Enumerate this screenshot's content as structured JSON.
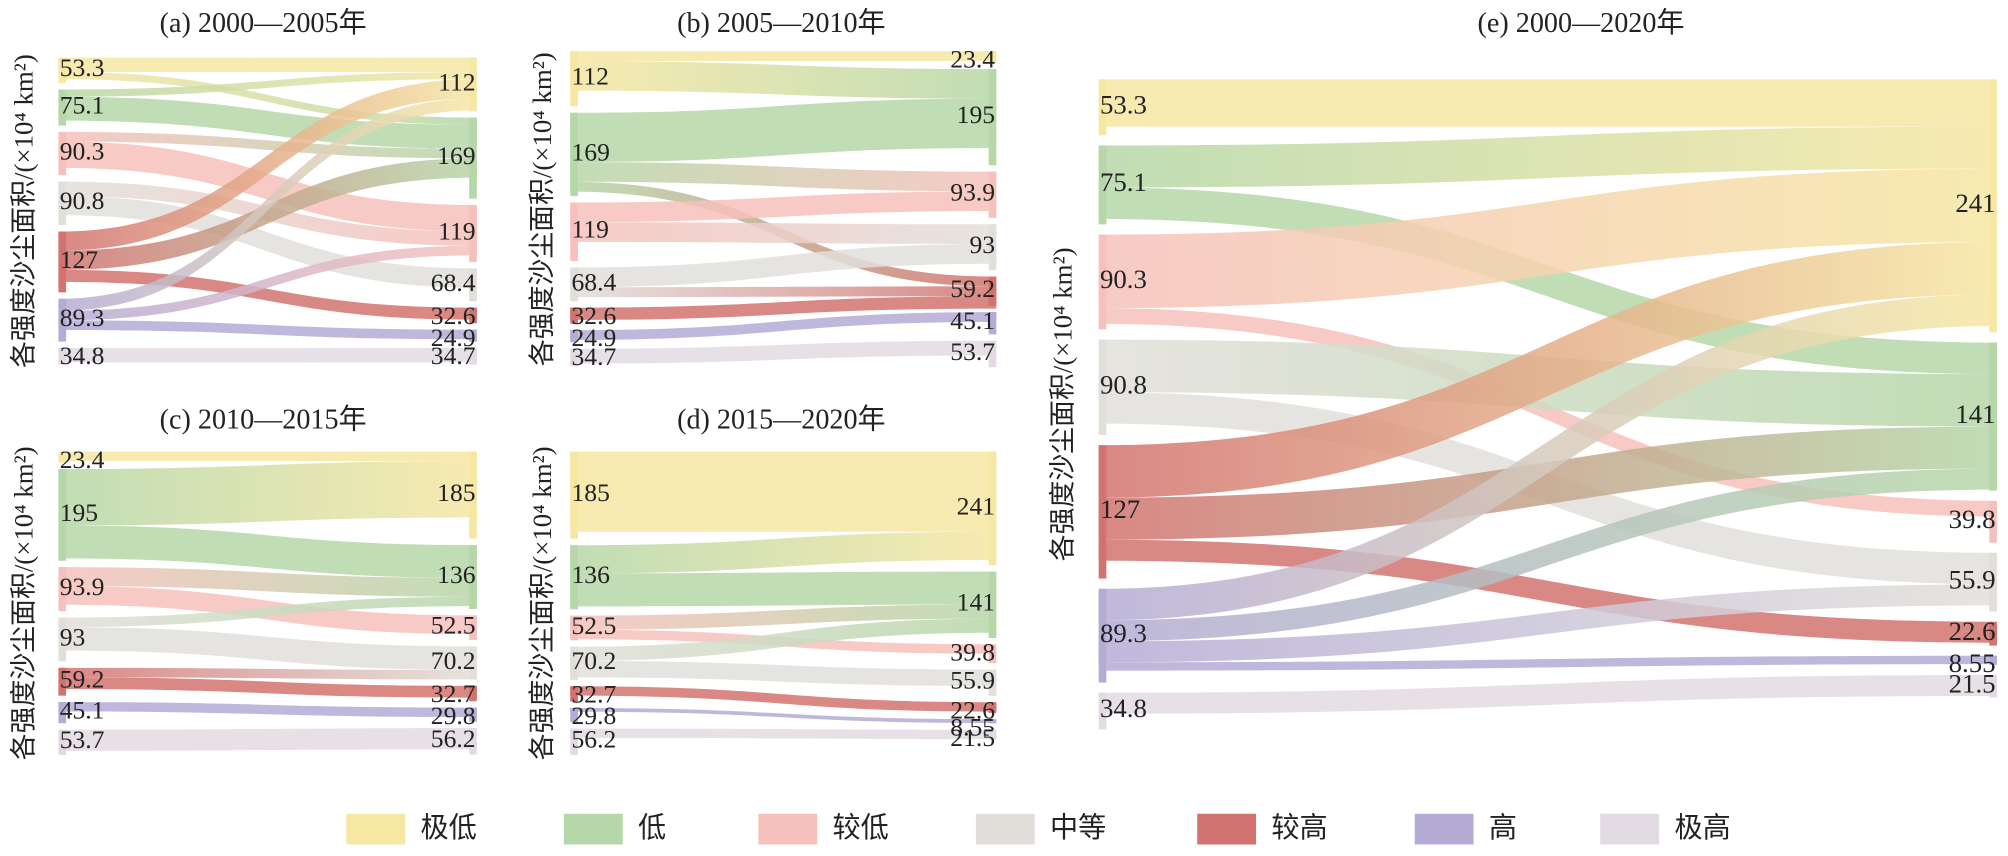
{
  "legend": {
    "categories": [
      "极低",
      "低",
      "较低",
      "中等",
      "较高",
      "高",
      "极高"
    ],
    "colors": [
      "#f6e7a3",
      "#b6d7a8",
      "#f6c1bc",
      "#e2dfda",
      "#d2736f",
      "#b5acd6",
      "#e3dbe3"
    ]
  },
  "chart_data": [
    {
      "type": "sankey",
      "title": "(a) 2000—2005年",
      "ylabel": "各强度沙尘面积/(×10⁴ km²)",
      "left": [
        53.3,
        75.1,
        90.3,
        90.8,
        127,
        89.3,
        34.8
      ],
      "right": [
        112,
        169,
        119,
        68.4,
        32.6,
        24.9,
        34.7
      ],
      "flows": [
        [
          0,
          0,
          30
        ],
        [
          0,
          1,
          15
        ],
        [
          1,
          0,
          15
        ],
        [
          1,
          1,
          50
        ],
        [
          2,
          1,
          20
        ],
        [
          2,
          2,
          55
        ],
        [
          3,
          2,
          30
        ],
        [
          3,
          3,
          40
        ],
        [
          4,
          0,
          40
        ],
        [
          4,
          1,
          40
        ],
        [
          4,
          4,
          25
        ],
        [
          5,
          0,
          25
        ],
        [
          5,
          2,
          20
        ],
        [
          5,
          5,
          20
        ],
        [
          6,
          6,
          30
        ]
      ]
    },
    {
      "type": "sankey",
      "title": "(b) 2005—2010年",
      "ylabel": "各强度沙尘面积/(×10⁴ km²)",
      "left": [
        112,
        169,
        119,
        68.4,
        32.6,
        24.9,
        34.7
      ],
      "right": [
        23.4,
        195,
        93.9,
        93.0,
        59.2,
        45.1,
        53.7
      ],
      "flows": [
        [
          0,
          0,
          20
        ],
        [
          0,
          1,
          60
        ],
        [
          1,
          1,
          100
        ],
        [
          1,
          2,
          40
        ],
        [
          1,
          4,
          20
        ],
        [
          2,
          2,
          40
        ],
        [
          2,
          3,
          40
        ],
        [
          3,
          3,
          40
        ],
        [
          3,
          4,
          20
        ],
        [
          4,
          4,
          25
        ],
        [
          5,
          5,
          20
        ],
        [
          6,
          6,
          30
        ]
      ]
    },
    {
      "type": "sankey",
      "title": "(c) 2010—2015年",
      "ylabel": "各强度沙尘面积/(×10⁴ km²)",
      "left": [
        23.4,
        195,
        93.9,
        93.0,
        59.2,
        45.1,
        53.7
      ],
      "right": [
        185,
        136,
        52.5,
        70.2,
        32.7,
        29.8,
        56.2
      ],
      "flows": [
        [
          0,
          0,
          20
        ],
        [
          1,
          0,
          120
        ],
        [
          1,
          1,
          70
        ],
        [
          2,
          1,
          40
        ],
        [
          2,
          2,
          40
        ],
        [
          3,
          1,
          20
        ],
        [
          3,
          3,
          50
        ],
        [
          4,
          3,
          20
        ],
        [
          4,
          4,
          25
        ],
        [
          5,
          5,
          20
        ],
        [
          6,
          6,
          45
        ]
      ]
    },
    {
      "type": "sankey",
      "title": "(d) 2015—2020年",
      "ylabel": "各强度沙尘面积/(×10⁴ km²)",
      "left": [
        185,
        136,
        52.5,
        70.2,
        32.7,
        29.8,
        56.2
      ],
      "right": [
        241,
        141,
        39.8,
        55.9,
        22.6,
        8.55,
        21.5
      ],
      "flows": [
        [
          0,
          0,
          170
        ],
        [
          1,
          0,
          60
        ],
        [
          1,
          1,
          70
        ],
        [
          2,
          1,
          30
        ],
        [
          2,
          2,
          20
        ],
        [
          3,
          1,
          30
        ],
        [
          3,
          3,
          35
        ],
        [
          4,
          4,
          20
        ],
        [
          5,
          5,
          8
        ],
        [
          6,
          6,
          20
        ]
      ]
    },
    {
      "type": "sankey",
      "title": "(e) 2000—2020年",
      "ylabel": "各强度沙尘面积/(×10⁴ km²)",
      "left": [
        53.3,
        75.1,
        90.3,
        90.8,
        127,
        89.3,
        34.8
      ],
      "right": [
        241,
        141,
        39.8,
        55.9,
        22.6,
        8.55,
        21.5
      ],
      "flows": [
        [
          0,
          0,
          45
        ],
        [
          1,
          0,
          40
        ],
        [
          1,
          1,
          30
        ],
        [
          2,
          0,
          70
        ],
        [
          2,
          2,
          15
        ],
        [
          3,
          1,
          50
        ],
        [
          3,
          3,
          30
        ],
        [
          4,
          0,
          50
        ],
        [
          4,
          1,
          40
        ],
        [
          4,
          4,
          20
        ],
        [
          5,
          0,
          30
        ],
        [
          5,
          1,
          20
        ],
        [
          5,
          3,
          20
        ],
        [
          5,
          5,
          8
        ],
        [
          6,
          6,
          20
        ]
      ]
    }
  ]
}
